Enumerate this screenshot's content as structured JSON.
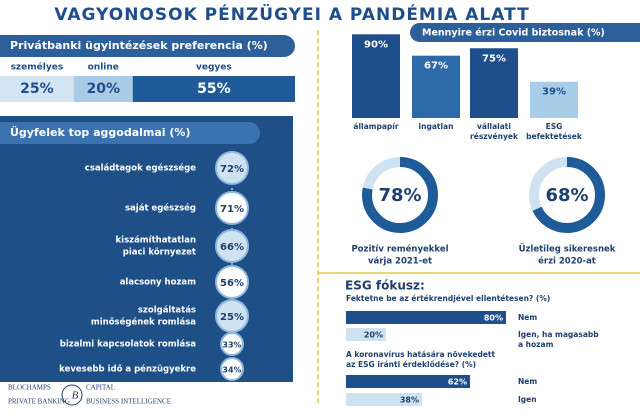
{
  "title": "VAGYONOSOK PÉNZÜGYEI A PANDÉMIA ALATT",
  "preference": {
    "heading": "Privátbanki ügyintézések preferencia (%)",
    "items": [
      {
        "name": "személyes",
        "value": 25,
        "value_label": "25%",
        "color": "#d3e4f2"
      },
      {
        "name": "online",
        "value": 20,
        "value_label": "20%",
        "color": "#a9cbe6"
      },
      {
        "name": "vegyes",
        "value": 55,
        "value_label": "55%",
        "color": "#1f5a99"
      }
    ]
  },
  "concerns": {
    "heading": "Ügyfelek top aggodalmai (%)",
    "items": [
      {
        "label": [
          "családtagok egészsége"
        ],
        "value": 72,
        "value_label": "72%"
      },
      {
        "label": [
          "saját egészség"
        ],
        "value": 71,
        "value_label": "71%"
      },
      {
        "label": [
          "kiszámíthatatlan",
          "piaci környezet"
        ],
        "value": 66,
        "value_label": "66%"
      },
      {
        "label": [
          "alacsony hozam"
        ],
        "value": 56,
        "value_label": "56%"
      },
      {
        "label": [
          "szolgáltatás",
          "minőségének romlása"
        ],
        "value": 25,
        "value_label": "25%"
      },
      {
        "label": [
          "bizalmi kapcsolatok romlása"
        ],
        "value": 33,
        "value_label": "33%"
      },
      {
        "label": [
          "kevesebb idő a pénzügyekre"
        ],
        "value": 34,
        "value_label": "34%"
      }
    ]
  },
  "covid": {
    "heading": "Mennyire érzi Covid biztosnak (%)",
    "items": [
      {
        "label": [
          "állampapír"
        ],
        "value": 90,
        "value_label": "90%",
        "color": "#1f4e8c"
      },
      {
        "label": [
          "ingatlan"
        ],
        "value": 67,
        "value_label": "67%",
        "color": "#2d6aa8"
      },
      {
        "label": [
          "vállalati",
          "részvények"
        ],
        "value": 75,
        "value_label": "75%",
        "color": "#1f4e8c"
      },
      {
        "label": [
          "ESG",
          "befektetések"
        ],
        "value": 39,
        "value_label": "39%",
        "color": "#a8cde8"
      }
    ]
  },
  "outlook": [
    {
      "value": 78,
      "value_label": "78%",
      "caption": [
        "Pozitív reményekkel",
        "várja 2021-et"
      ]
    },
    {
      "value": 68,
      "value_label": "68%",
      "caption": [
        "Üzletileg sikeresnek",
        "érzi 2020-at"
      ]
    }
  ],
  "esg": {
    "heading": "ESG fókusz:",
    "questions": [
      {
        "question": [
          "Fektetne be az értékrendjével ellentétesen? (%)"
        ],
        "answers": [
          {
            "label": [
              "Nem"
            ],
            "value": 80,
            "value_label": "80%",
            "color": "#1f4e8c"
          },
          {
            "label": [
              "Igen, ha magasabb",
              "a hozam"
            ],
            "value": 20,
            "value_label": "20%",
            "color": "#cfe2f2"
          }
        ]
      },
      {
        "question": [
          "A koronavírus hatására növekedett",
          "az ESG iránti érdeklődése? (%)"
        ],
        "answers": [
          {
            "label": [
              "Nem"
            ],
            "value": 62,
            "value_label": "62%",
            "color": "#1f4e8c"
          },
          {
            "label": [
              "Igen"
            ],
            "value": 38,
            "value_label": "38%",
            "color": "#cfe2f2"
          }
        ]
      }
    ]
  },
  "footer": {
    "brand": "BLOCHAMPS",
    "brand2": "CAPITAL",
    "left": "PRIVATE BANKING",
    "right": "BUSINESS INTELLIGENCE"
  }
}
